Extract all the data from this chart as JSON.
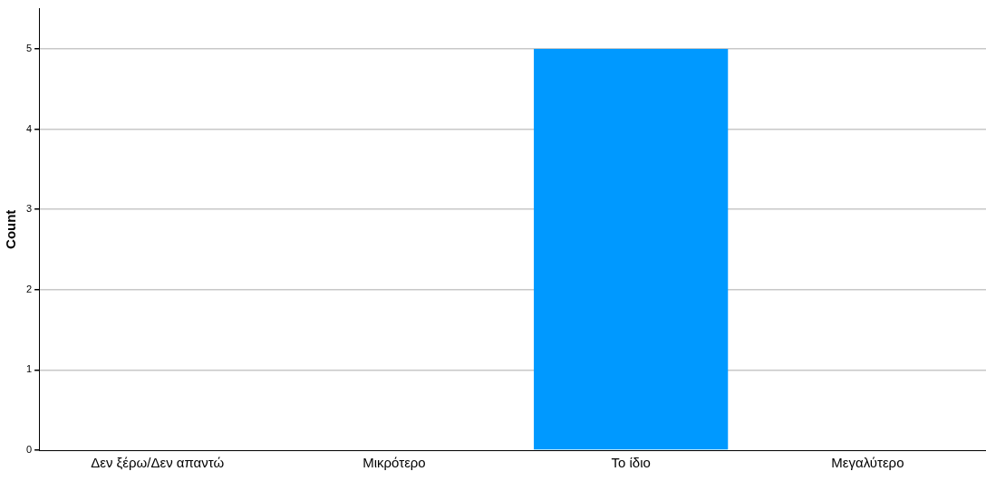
{
  "chart_data": {
    "type": "bar",
    "ylabel": "Count",
    "categories": [
      "Δεν ξέρω/Δεν απαντώ",
      "Μικρότερο",
      "Το ίδιο",
      "Μεγαλύτερο"
    ],
    "values": [
      0,
      0,
      5,
      0
    ],
    "color": "#0099ff",
    "ylim": [
      0,
      5.5
    ],
    "yticks": [
      0,
      1,
      2,
      3,
      4,
      5
    ],
    "grid": "y",
    "legend": false
  }
}
